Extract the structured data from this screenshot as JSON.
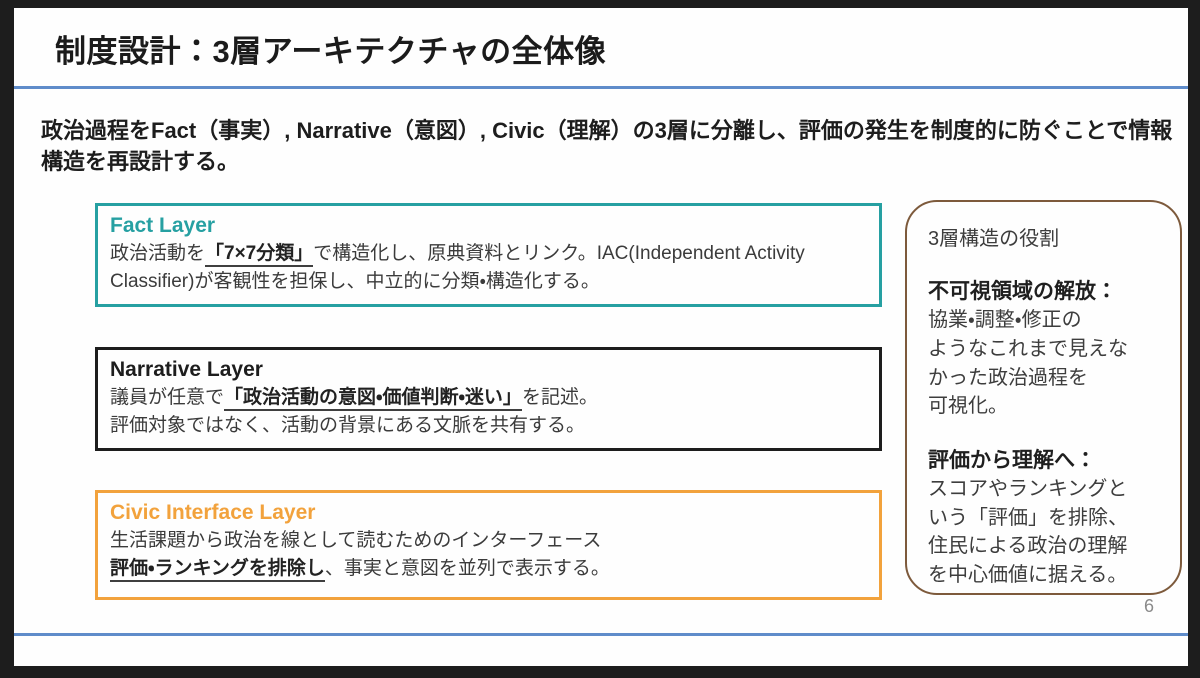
{
  "slide": {
    "title": "制度設計：3層アーキテクチャの全体像",
    "intro": "政治過程をFact（事実）, Narrative（意図）, Civic（理解）の3層に分離し、評価の発生を制度的に防ぐことで情報構造を再設計する。",
    "page_number": "6",
    "colors": {
      "divider_blue": "#5f8cca",
      "fact_teal": "#26a0a2",
      "narrative_black": "#1d1d1d",
      "civic_orange": "#f2a23c",
      "side_panel_brown": "#7d5a3c"
    },
    "layers": [
      {
        "id": "fact",
        "title": "Fact Layer",
        "accent_color": "#26a0a2",
        "lines": [
          [
            {
              "text": "政治活動を",
              "bold": false,
              "underline": false
            },
            {
              "text": "「7×7分類」",
              "bold": true,
              "underline": true
            },
            {
              "text": "で構造化し、原典資料とリンク。IAC(Independent Activity Classifier)が客観性を担保し、中立的に分類・構造化する。",
              "bold": false,
              "underline": false
            }
          ]
        ]
      },
      {
        "id": "narrative",
        "title": "Narrative Layer",
        "accent_color": "#1d1d1d",
        "lines": [
          [
            {
              "text": "議員が任意で",
              "bold": false,
              "underline": false
            },
            {
              "text": "「政治活動の意図・価値判断・迷い」",
              "bold": true,
              "underline": true
            },
            {
              "text": "を記述。",
              "bold": false,
              "underline": false
            }
          ],
          [
            {
              "text": "評価対象ではなく、活動の背景にある文脈を共有する。",
              "bold": false,
              "underline": false
            }
          ]
        ]
      },
      {
        "id": "civic",
        "title": "Civic Interface Layer",
        "accent_color": "#f2a23c",
        "lines": [
          [
            {
              "text": "生活課題から政治を線として読むためのインターフェース",
              "bold": false,
              "underline": false
            }
          ],
          [
            {
              "text": "評価・ランキングを排除し",
              "bold": true,
              "underline": true
            },
            {
              "text": "、事実と意図を並列で表示する。",
              "bold": false,
              "underline": false
            }
          ]
        ]
      }
    ],
    "side_panel": {
      "title": "3層構造の役割",
      "sections": [
        {
          "heading": "不可視領域の解放：",
          "body": "協業・調整・修正の\nようなこれまで見えな\nかった政治過程を\n可視化。"
        },
        {
          "heading": "評価から理解へ：",
          "body": "スコアやランキングと\nいう「評価」を排除、\n住民による政治の理解\nを中心価値に据える。"
        }
      ]
    }
  }
}
